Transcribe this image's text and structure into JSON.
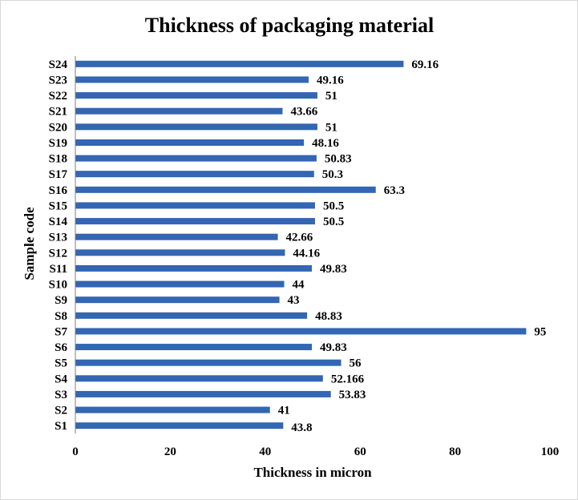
{
  "chart_data": {
    "type": "bar",
    "orientation": "horizontal",
    "title": "Thickness of packaging material",
    "xlabel": "Thickness in micron",
    "ylabel": "Sample code",
    "xlim": [
      0,
      100
    ],
    "xticks": [
      0,
      20,
      40,
      60,
      80,
      100
    ],
    "grid": false,
    "legend": "none",
    "bar_color": "#3366b3",
    "categories": [
      "S1",
      "S2",
      "S3",
      "S4",
      "S5",
      "S6",
      "S7",
      "S8",
      "S9",
      "S10",
      "S11",
      "S12",
      "S13",
      "S14",
      "S15",
      "S16",
      "S17",
      "S18",
      "S19",
      "S20",
      "S21",
      "S22",
      "S23",
      "S24"
    ],
    "values": [
      43.8,
      41,
      53.83,
      52.166,
      56,
      49.83,
      95,
      48.83,
      43,
      44,
      49.83,
      44.16,
      42.66,
      50.5,
      50.5,
      63.3,
      50.3,
      50.83,
      48.16,
      51,
      43.66,
      51,
      49.16,
      69.16
    ],
    "data_labels": [
      "43.8",
      "41",
      "53.83",
      "52.166",
      "56",
      "49.83",
      "95",
      "48.83",
      "43",
      "44",
      "49.83",
      "44.16",
      "42.66",
      "50.5",
      "50.5",
      "63.3",
      "50.3",
      "50.83",
      "48.16",
      "51",
      "43.66",
      "51",
      "49.16",
      "69.16"
    ]
  }
}
